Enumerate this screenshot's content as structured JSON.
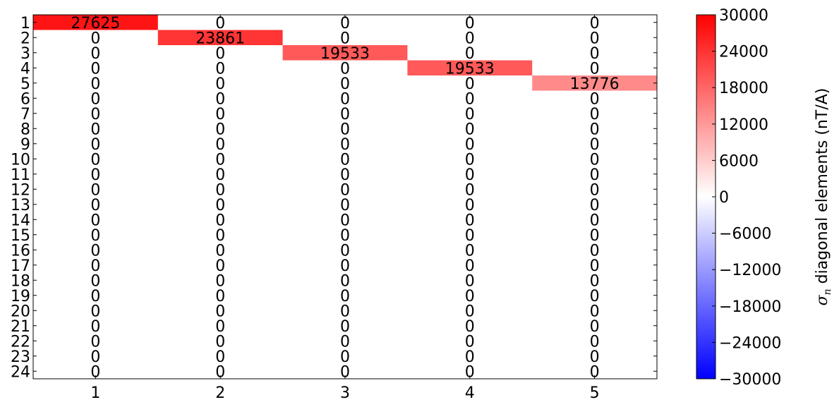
{
  "chart_data": {
    "type": "heatmap",
    "row_labels": [
      "1",
      "2",
      "3",
      "4",
      "5",
      "6",
      "7",
      "8",
      "9",
      "10",
      "11",
      "12",
      "13",
      "14",
      "15",
      "16",
      "17",
      "18",
      "19",
      "20",
      "21",
      "22",
      "23",
      "24"
    ],
    "col_labels": [
      "1",
      "2",
      "3",
      "4",
      "5"
    ],
    "values": [
      [
        27625,
        0,
        0,
        0,
        0
      ],
      [
        0,
        23861,
        0,
        0,
        0
      ],
      [
        0,
        0,
        19533,
        0,
        0
      ],
      [
        0,
        0,
        0,
        19533,
        0
      ],
      [
        0,
        0,
        0,
        0,
        13776
      ],
      [
        0,
        0,
        0,
        0,
        0
      ],
      [
        0,
        0,
        0,
        0,
        0
      ],
      [
        0,
        0,
        0,
        0,
        0
      ],
      [
        0,
        0,
        0,
        0,
        0
      ],
      [
        0,
        0,
        0,
        0,
        0
      ],
      [
        0,
        0,
        0,
        0,
        0
      ],
      [
        0,
        0,
        0,
        0,
        0
      ],
      [
        0,
        0,
        0,
        0,
        0
      ],
      [
        0,
        0,
        0,
        0,
        0
      ],
      [
        0,
        0,
        0,
        0,
        0
      ],
      [
        0,
        0,
        0,
        0,
        0
      ],
      [
        0,
        0,
        0,
        0,
        0
      ],
      [
        0,
        0,
        0,
        0,
        0
      ],
      [
        0,
        0,
        0,
        0,
        0
      ],
      [
        0,
        0,
        0,
        0,
        0
      ],
      [
        0,
        0,
        0,
        0,
        0
      ],
      [
        0,
        0,
        0,
        0,
        0
      ],
      [
        0,
        0,
        0,
        0,
        0
      ],
      [
        0,
        0,
        0,
        0,
        0
      ]
    ],
    "colorbar": {
      "range": [
        -30000,
        30000
      ],
      "ticks": [
        "30000",
        "24000",
        "18000",
        "12000",
        "6000",
        "0",
        "−6000",
        "−12000",
        "−18000",
        "−24000",
        "−30000"
      ],
      "tick_values": [
        30000,
        24000,
        18000,
        12000,
        6000,
        0,
        -6000,
        -12000,
        -18000,
        -24000,
        -30000
      ],
      "label_symbol": "σ",
      "label_subscript": "n",
      "label_text": " diagonal elements  (nT/A)",
      "colormap": "bwr",
      "colors": {
        "low": "#0000ff",
        "mid": "#ffffff",
        "high": "#ff0000"
      }
    },
    "grid": false
  }
}
